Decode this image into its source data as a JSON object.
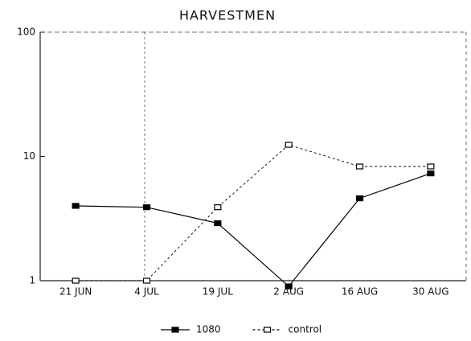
{
  "chart_data": {
    "type": "line",
    "title": "HARVESTMEN",
    "categories": [
      "21 JUN",
      "4 JUL",
      "19 JUL",
      "2 AUG",
      "16 AUG",
      "30 AUG"
    ],
    "series": [
      {
        "name": "1080",
        "color": "#000000",
        "marker": "filled",
        "dashed": false,
        "values": [
          4,
          3.9,
          2.9,
          0.9,
          4.6,
          7.3
        ]
      },
      {
        "name": "control",
        "color": "#000000",
        "marker": "open",
        "dashed": true,
        "values": [
          1,
          1,
          3.9,
          12.4,
          8.3,
          8.3
        ]
      }
    ],
    "ylim": [
      1,
      100
    ],
    "yticks": [
      1,
      10,
      100
    ],
    "log_y": true,
    "grid": false,
    "legend": "bottom"
  }
}
